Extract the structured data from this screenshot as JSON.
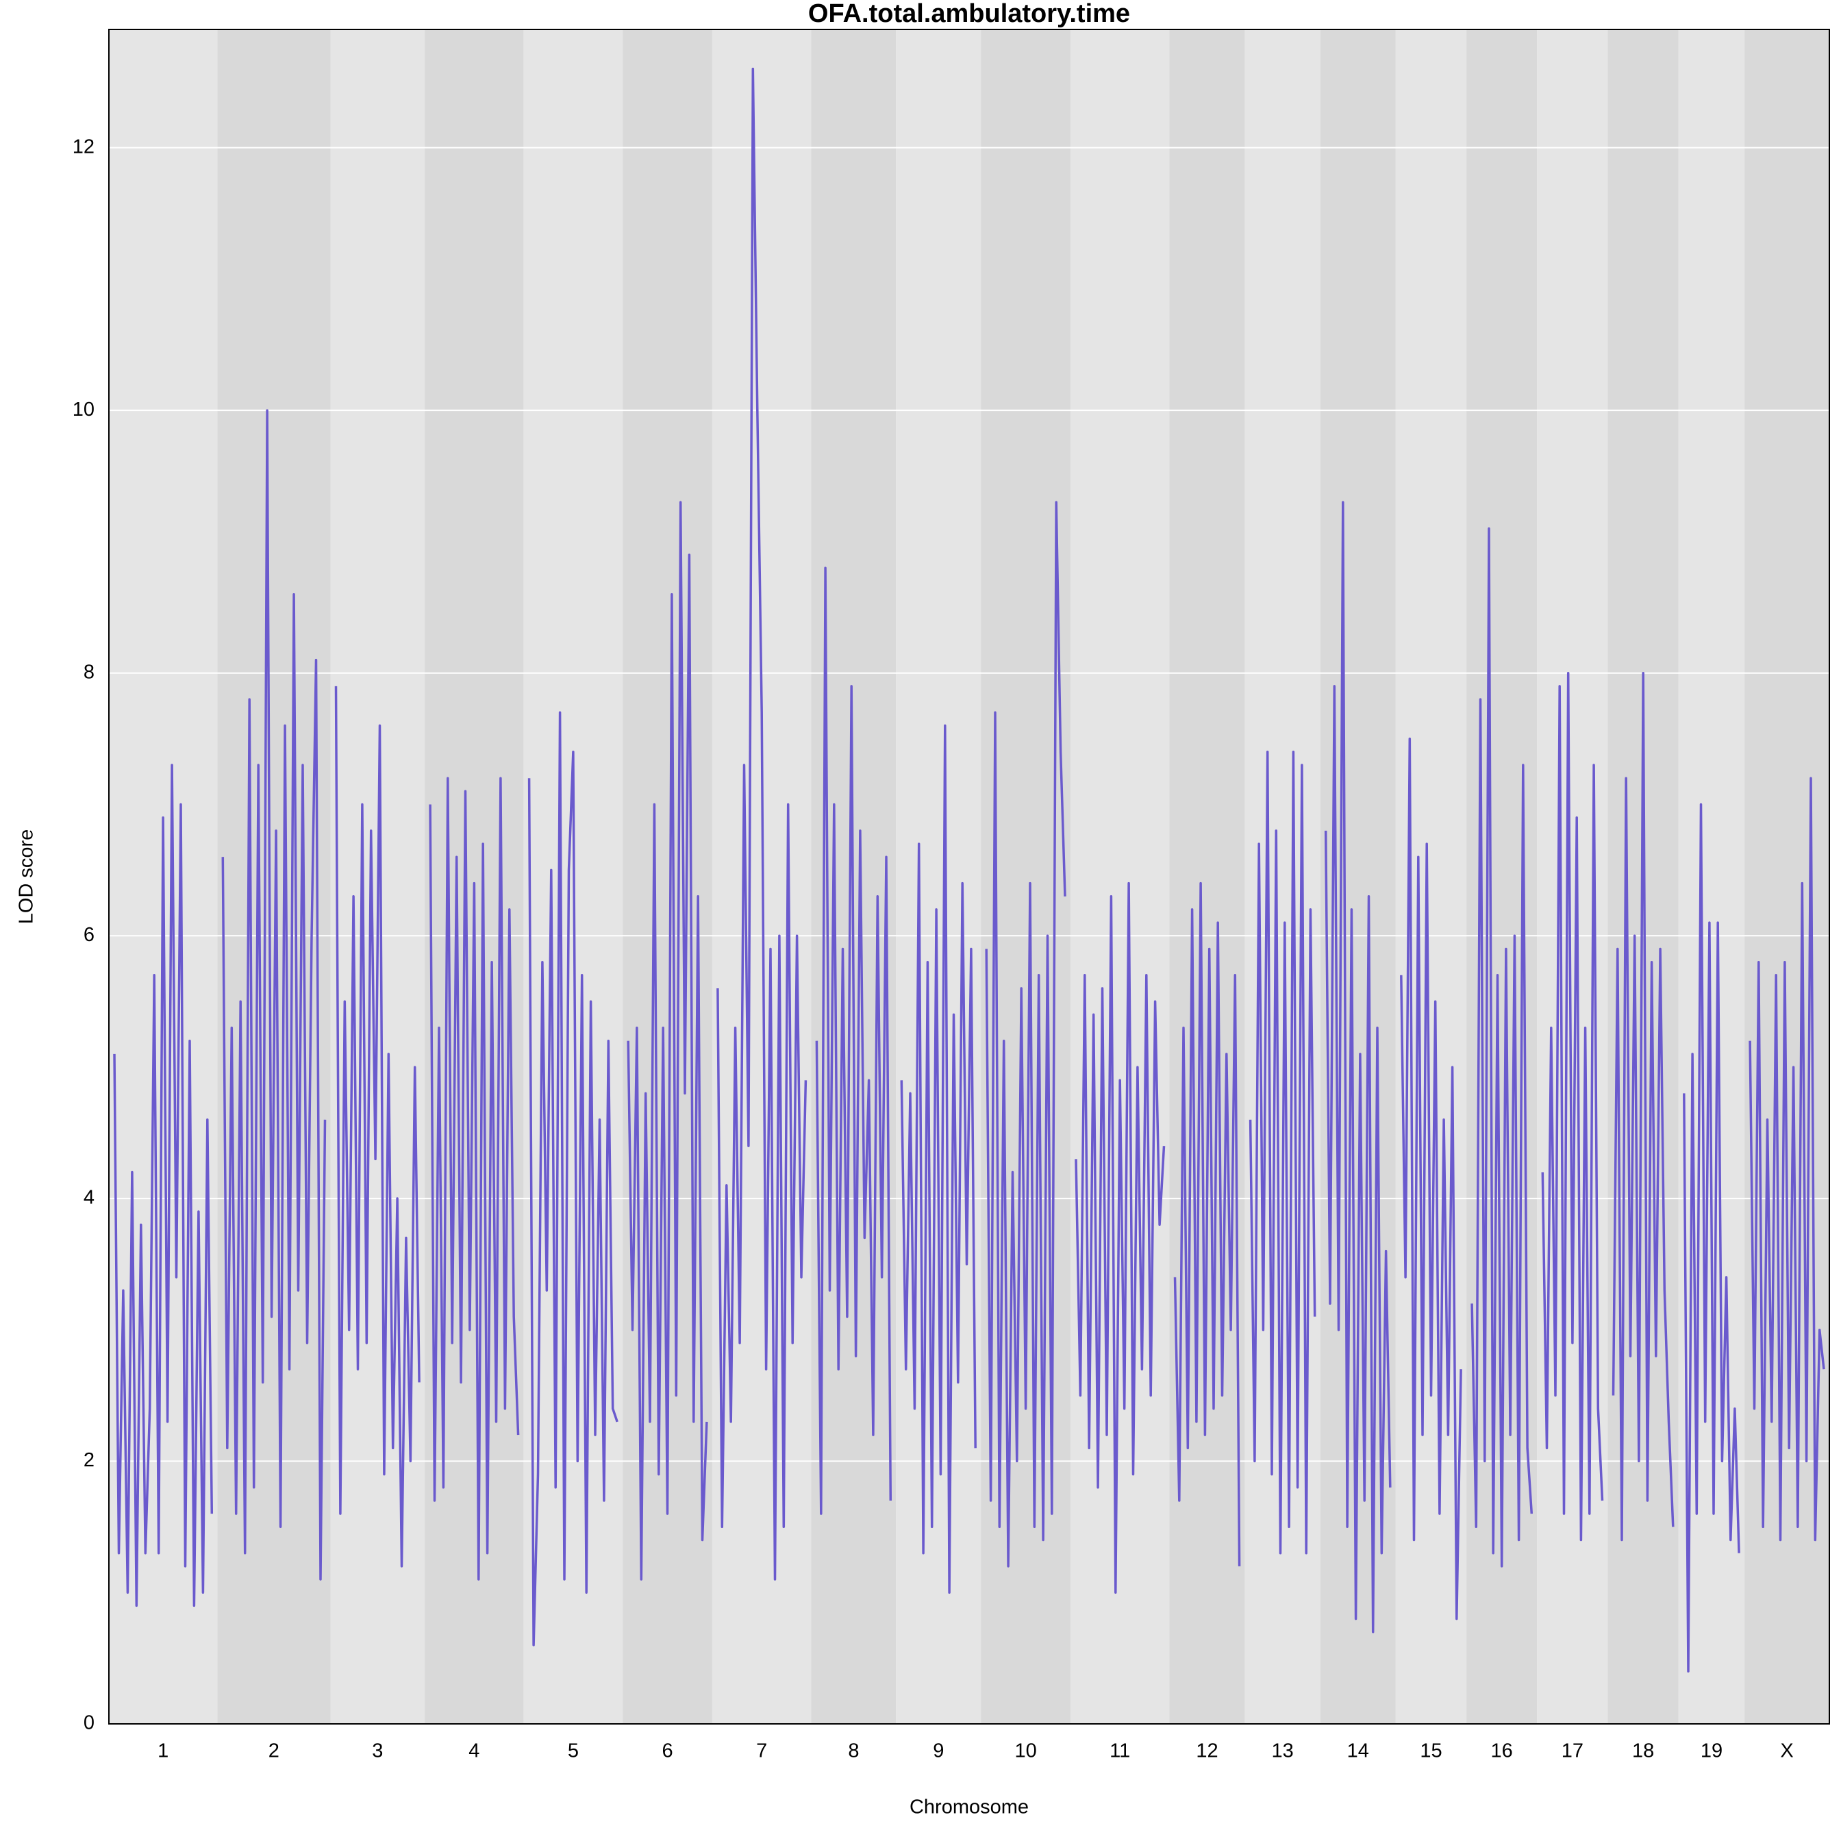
{
  "chart_data": {
    "type": "line",
    "title": "OFA.total.ambulatory.time",
    "xlabel": "Chromosome",
    "ylabel": "LOD score",
    "color": "#6a5acd",
    "band_colors": [
      "#e5e5e5",
      "#d9d9d9"
    ],
    "grid": true,
    "ylim": [
      0,
      12.9
    ],
    "yticks": [
      0,
      2,
      4,
      6,
      8,
      10,
      12
    ],
    "chromosomes": [
      {
        "name": "1",
        "values": [
          5.1,
          1.3,
          3.3,
          1.0,
          4.2,
          0.9,
          3.8,
          1.3,
          2.4,
          5.7,
          1.3,
          6.9,
          2.3,
          7.3,
          3.4,
          7.0,
          1.2,
          5.2,
          0.9,
          3.9,
          1.0,
          4.6,
          1.6
        ]
      },
      {
        "name": "2",
        "values": [
          6.6,
          2.1,
          5.3,
          1.6,
          5.5,
          1.3,
          7.8,
          1.8,
          7.3,
          2.6,
          10.0,
          3.1,
          6.8,
          1.5,
          7.6,
          2.7,
          8.6,
          3.3,
          7.3,
          2.9,
          6.0,
          8.1,
          1.1,
          4.6
        ]
      },
      {
        "name": "3",
        "values": [
          7.9,
          1.6,
          5.5,
          3.0,
          6.3,
          2.7,
          7.0,
          2.9,
          6.8,
          4.3,
          7.6,
          1.9,
          5.1,
          2.1,
          4.0,
          1.2,
          3.7,
          2.0,
          5.0,
          2.6
        ]
      },
      {
        "name": "4",
        "values": [
          7.0,
          1.7,
          5.3,
          1.8,
          7.2,
          2.9,
          6.6,
          2.6,
          7.1,
          3.0,
          6.4,
          1.1,
          6.7,
          1.3,
          5.8,
          2.3,
          7.2,
          2.4,
          6.2,
          3.1,
          2.2
        ]
      },
      {
        "name": "5",
        "values": [
          7.2,
          0.6,
          1.9,
          5.8,
          3.3,
          6.5,
          1.8,
          7.7,
          1.1,
          6.5,
          7.4,
          2.0,
          5.7,
          1.0,
          5.5,
          2.2,
          4.6,
          1.7,
          5.2,
          2.4,
          2.3
        ]
      },
      {
        "name": "6",
        "values": [
          5.2,
          3.0,
          5.3,
          1.1,
          4.8,
          2.3,
          7.0,
          1.9,
          5.3,
          1.6,
          8.6,
          2.5,
          9.3,
          4.8,
          8.9,
          2.3,
          6.3,
          1.4,
          2.3
        ]
      },
      {
        "name": "7",
        "values": [
          5.6,
          1.5,
          4.1,
          2.3,
          5.3,
          2.9,
          7.3,
          4.4,
          12.6,
          10.0,
          7.7,
          2.7,
          5.9,
          1.1,
          6.0,
          1.5,
          7.0,
          2.9,
          6.0,
          3.4,
          4.9
        ]
      },
      {
        "name": "8",
        "values": [
          5.2,
          1.6,
          8.8,
          3.3,
          7.0,
          2.7,
          5.9,
          3.1,
          7.9,
          2.8,
          6.8,
          3.7,
          4.9,
          2.2,
          6.3,
          3.4,
          6.6,
          1.7
        ]
      },
      {
        "name": "9",
        "values": [
          4.9,
          2.7,
          4.8,
          2.4,
          6.7,
          1.3,
          5.8,
          1.5,
          6.2,
          1.9,
          7.6,
          1.0,
          5.4,
          2.6,
          6.4,
          3.5,
          5.9,
          2.1
        ]
      },
      {
        "name": "10",
        "values": [
          5.9,
          1.7,
          7.7,
          1.5,
          5.2,
          1.2,
          4.2,
          2.0,
          5.6,
          2.4,
          6.4,
          1.5,
          5.7,
          1.4,
          6.0,
          1.6,
          9.3,
          7.4,
          6.3
        ]
      },
      {
        "name": "11",
        "values": [
          4.3,
          2.5,
          5.7,
          2.1,
          5.4,
          1.8,
          5.6,
          2.2,
          6.3,
          1.0,
          4.9,
          2.4,
          6.4,
          1.9,
          5.0,
          2.7,
          5.7,
          2.5,
          5.5,
          3.8,
          4.4
        ]
      },
      {
        "name": "12",
        "values": [
          3.4,
          1.7,
          5.3,
          2.1,
          6.2,
          2.3,
          6.4,
          2.2,
          5.9,
          2.4,
          6.1,
          2.5,
          5.1,
          3.0,
          5.7,
          1.2
        ]
      },
      {
        "name": "13",
        "values": [
          4.6,
          2.0,
          6.7,
          3.0,
          7.4,
          1.9,
          6.8,
          1.3,
          6.1,
          1.5,
          7.4,
          1.8,
          7.3,
          1.3,
          6.2,
          3.1
        ]
      },
      {
        "name": "14",
        "values": [
          6.8,
          3.2,
          7.9,
          3.0,
          9.3,
          1.5,
          6.2,
          0.8,
          5.1,
          1.7,
          6.3,
          0.7,
          5.3,
          1.3,
          3.6,
          1.8
        ]
      },
      {
        "name": "15",
        "values": [
          5.7,
          3.4,
          7.5,
          1.4,
          6.6,
          2.2,
          6.7,
          2.5,
          5.5,
          1.6,
          4.6,
          2.2,
          5.0,
          0.8,
          2.7
        ]
      },
      {
        "name": "16",
        "values": [
          3.2,
          1.5,
          7.8,
          2.0,
          9.1,
          1.3,
          5.7,
          1.2,
          5.9,
          2.2,
          6.0,
          1.4,
          7.3,
          2.1,
          1.6
        ]
      },
      {
        "name": "17",
        "values": [
          4.2,
          2.1,
          5.3,
          2.5,
          7.9,
          1.6,
          8.0,
          2.9,
          6.9,
          1.4,
          5.3,
          1.6,
          7.3,
          2.4,
          1.7
        ]
      },
      {
        "name": "18",
        "values": [
          2.5,
          5.9,
          1.4,
          7.2,
          2.8,
          6.0,
          2.0,
          8.0,
          1.7,
          5.8,
          2.8,
          5.9,
          3.3,
          2.3,
          1.5
        ]
      },
      {
        "name": "19",
        "values": [
          4.8,
          0.4,
          5.1,
          1.6,
          7.0,
          2.3,
          6.1,
          1.6,
          6.1,
          2.0,
          3.4,
          1.4,
          2.4,
          1.3
        ]
      },
      {
        "name": "X",
        "values": [
          5.2,
          2.4,
          5.8,
          1.5,
          4.6,
          2.3,
          5.7,
          1.4,
          5.8,
          2.1,
          5.0,
          1.5,
          6.4,
          2.0,
          7.2,
          1.4,
          3.0,
          2.7
        ]
      }
    ]
  }
}
